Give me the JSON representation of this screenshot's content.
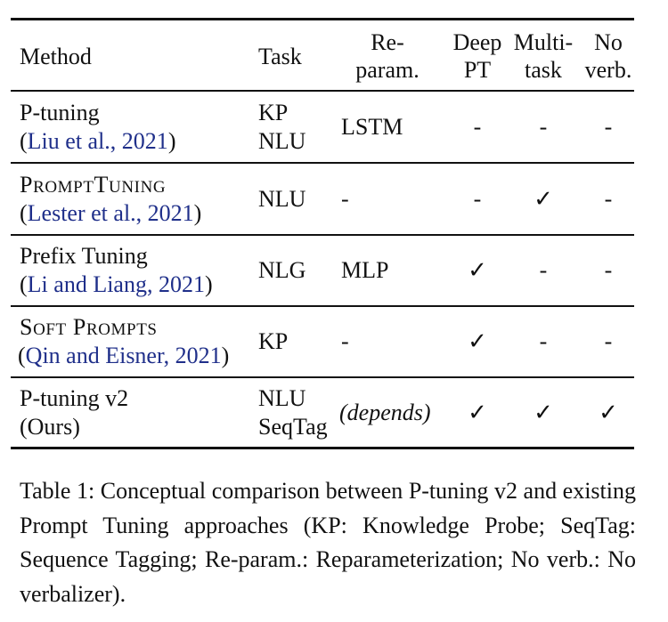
{
  "table": {
    "headers": {
      "method": "Method",
      "task": "Task",
      "reparam_line1": "Re-",
      "reparam_line2": "param.",
      "deep_line1": "Deep",
      "deep_line2": "PT",
      "multi_line1": "Multi-",
      "multi_line2": "task",
      "noverb_line1": "No",
      "noverb_line2": "verb."
    },
    "rows": [
      {
        "method": "P-tuning",
        "cite": "Liu et al., 2021",
        "task_line1": "KP",
        "task_line2": "NLU",
        "reparam": "LSTM",
        "deep": "-",
        "multi": "-",
        "noverb": "-"
      },
      {
        "method_cap1": "P",
        "method_small1": "ROMPT",
        "method_cap2": "T",
        "method_small2": "UNING",
        "cite": "Lester et al., 2021",
        "task_line1": "NLU",
        "reparam": "-",
        "deep": "-",
        "multi": "✓",
        "noverb": "-"
      },
      {
        "method": "Prefix Tuning",
        "cite": "Li and Liang, 2021",
        "task_line1": "NLG",
        "reparam": "MLP",
        "deep": "✓",
        "multi": "-",
        "noverb": "-"
      },
      {
        "method_cap1": "S",
        "method_small1": "OFT",
        "method_cap2": "P",
        "method_small2": "ROMPTS",
        "cite": "Qin and Eisner, 2021",
        "task_line1": "KP",
        "reparam": "-",
        "deep": "✓",
        "multi": "-",
        "noverb": "-"
      },
      {
        "method": "P-tuning v2",
        "cite": "(Ours)",
        "task_line1": "NLU",
        "task_line2": "SeqTag",
        "reparam": "(depends)",
        "deep": "✓",
        "multi": "✓",
        "noverb": "✓"
      }
    ]
  },
  "caption": "Table 1: Conceptual comparison between P-tuning v2 and existing Prompt Tuning approaches (KP: Knowledge Probe; SeqTag: Sequence Tagging; Re-param.: Reparameterization; No verb.: No verbalizer)."
}
